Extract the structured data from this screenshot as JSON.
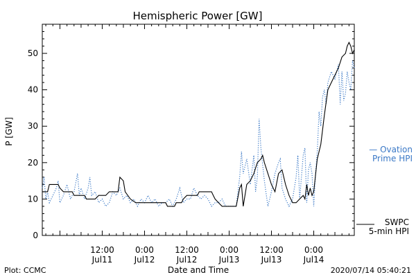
{
  "chart_data": {
    "type": "line",
    "title": "Hemispheric Power [GW]",
    "ylabel": "P [GW]",
    "xlabel": "Date and Time",
    "ylim": [
      0,
      58
    ],
    "yticks": [
      0,
      10,
      20,
      30,
      40,
      50
    ],
    "xlim": [
      "2020-07-10T19:00",
      "2020-07-14T11:30"
    ],
    "xticks": [
      {
        "time": "2020-07-11T12:00",
        "line1": "12:00",
        "line2": "Jul11"
      },
      {
        "time": "2020-07-12T00:00",
        "line1": "0:00",
        "line2": "Jul12"
      },
      {
        "time": "2020-07-12T12:00",
        "line1": "12:00",
        "line2": "Jul12"
      },
      {
        "time": "2020-07-13T00:00",
        "line1": "0:00",
        "line2": "Jul13"
      },
      {
        "time": "2020-07-13T12:00",
        "line1": "12:00",
        "line2": "Jul13"
      },
      {
        "time": "2020-07-14T00:00",
        "line1": "0:00",
        "line2": "Jul14"
      }
    ],
    "series": [
      {
        "name": "SWPC 5-min HPI",
        "color": "#000000",
        "style": "solid",
        "points": [
          [
            "2020-07-10T19:00",
            12
          ],
          [
            "2020-07-10T20:30",
            12
          ],
          [
            "2020-07-10T21:00",
            14
          ],
          [
            "2020-07-10T23:30",
            14
          ],
          [
            "2020-07-11T00:00",
            13
          ],
          [
            "2020-07-11T01:00",
            12
          ],
          [
            "2020-07-11T03:30",
            12
          ],
          [
            "2020-07-11T04:00",
            11
          ],
          [
            "2020-07-11T07:00",
            11
          ],
          [
            "2020-07-11T07:30",
            10
          ],
          [
            "2020-07-11T10:00",
            10
          ],
          [
            "2020-07-11T11:00",
            11
          ],
          [
            "2020-07-11T13:00",
            11
          ],
          [
            "2020-07-11T14:00",
            12
          ],
          [
            "2020-07-11T16:30",
            12
          ],
          [
            "2020-07-11T17:00",
            16
          ],
          [
            "2020-07-11T18:00",
            15
          ],
          [
            "2020-07-11T18:30",
            12
          ],
          [
            "2020-07-11T20:00",
            10
          ],
          [
            "2020-07-11T21:30",
            9
          ],
          [
            "2020-07-12T06:00",
            9
          ],
          [
            "2020-07-12T06:30",
            8
          ],
          [
            "2020-07-12T08:30",
            8
          ],
          [
            "2020-07-12T09:00",
            9
          ],
          [
            "2020-07-12T10:30",
            9
          ],
          [
            "2020-07-12T11:00",
            10
          ],
          [
            "2020-07-12T12:00",
            11
          ],
          [
            "2020-07-12T15:00",
            11
          ],
          [
            "2020-07-12T15:30",
            12
          ],
          [
            "2020-07-12T19:00",
            12
          ],
          [
            "2020-07-12T19:30",
            11
          ],
          [
            "2020-07-12T20:00",
            10
          ],
          [
            "2020-07-12T21:00",
            9
          ],
          [
            "2020-07-12T22:00",
            8
          ],
          [
            "2020-07-13T02:00",
            8
          ],
          [
            "2020-07-13T03:00",
            13
          ],
          [
            "2020-07-13T03:30",
            14
          ],
          [
            "2020-07-13T04:00",
            8
          ],
          [
            "2020-07-13T05:00",
            14
          ],
          [
            "2020-07-13T06:00",
            15
          ],
          [
            "2020-07-13T07:00",
            17
          ],
          [
            "2020-07-13T08:00",
            20
          ],
          [
            "2020-07-13T09:00",
            21
          ],
          [
            "2020-07-13T09:30",
            22
          ],
          [
            "2020-07-13T10:00",
            20
          ],
          [
            "2020-07-13T11:00",
            17
          ],
          [
            "2020-07-13T12:00",
            14
          ],
          [
            "2020-07-13T13:00",
            12
          ],
          [
            "2020-07-13T14:00",
            17
          ],
          [
            "2020-07-13T15:00",
            18
          ],
          [
            "2020-07-13T16:00",
            14
          ],
          [
            "2020-07-13T17:00",
            11
          ],
          [
            "2020-07-13T18:00",
            9
          ],
          [
            "2020-07-13T19:00",
            9
          ],
          [
            "2020-07-13T20:00",
            10
          ],
          [
            "2020-07-13T21:00",
            11
          ],
          [
            "2020-07-13T21:30",
            10
          ],
          [
            "2020-07-13T22:00",
            14
          ],
          [
            "2020-07-13T22:30",
            11
          ],
          [
            "2020-07-13T23:00",
            13
          ],
          [
            "2020-07-13T23:30",
            11
          ],
          [
            "2020-07-14T00:00",
            12
          ],
          [
            "2020-07-14T01:00",
            21
          ],
          [
            "2020-07-14T02:00",
            25
          ],
          [
            "2020-07-14T03:00",
            33
          ],
          [
            "2020-07-14T04:00",
            40
          ],
          [
            "2020-07-14T05:00",
            42
          ],
          [
            "2020-07-14T06:00",
            44
          ],
          [
            "2020-07-14T07:00",
            46
          ],
          [
            "2020-07-14T08:00",
            49
          ],
          [
            "2020-07-14T09:00",
            50
          ],
          [
            "2020-07-14T09:30",
            52
          ],
          [
            "2020-07-14T10:00",
            53
          ],
          [
            "2020-07-14T10:30",
            52
          ],
          [
            "2020-07-14T11:00",
            50
          ],
          [
            "2020-07-14T11:30",
            51
          ]
        ]
      },
      {
        "name": "Ovation Prime HPI",
        "color": "#3a78c6",
        "style": "dotted",
        "points": [
          [
            "2020-07-10T19:00",
            13
          ],
          [
            "2020-07-10T19:30",
            16
          ],
          [
            "2020-07-10T20:00",
            10
          ],
          [
            "2020-07-10T20:30",
            12
          ],
          [
            "2020-07-10T21:00",
            9
          ],
          [
            "2020-07-10T22:00",
            11
          ],
          [
            "2020-07-10T23:00",
            13
          ],
          [
            "2020-07-10T23:30",
            15
          ],
          [
            "2020-07-11T00:00",
            9
          ],
          [
            "2020-07-11T01:00",
            11
          ],
          [
            "2020-07-11T02:00",
            14
          ],
          [
            "2020-07-11T03:00",
            10
          ],
          [
            "2020-07-11T04:00",
            12
          ],
          [
            "2020-07-11T05:00",
            17
          ],
          [
            "2020-07-11T05:30",
            11
          ],
          [
            "2020-07-11T06:00",
            13
          ],
          [
            "2020-07-11T07:00",
            10
          ],
          [
            "2020-07-11T08:00",
            13
          ],
          [
            "2020-07-11T08:30",
            16
          ],
          [
            "2020-07-11T09:00",
            11
          ],
          [
            "2020-07-11T10:00",
            12
          ],
          [
            "2020-07-11T11:00",
            9
          ],
          [
            "2020-07-11T12:00",
            10
          ],
          [
            "2020-07-11T13:00",
            8
          ],
          [
            "2020-07-11T14:00",
            9
          ],
          [
            "2020-07-11T15:00",
            12
          ],
          [
            "2020-07-11T16:00",
            11
          ],
          [
            "2020-07-11T17:00",
            13
          ],
          [
            "2020-07-11T18:00",
            10
          ],
          [
            "2020-07-11T19:00",
            11
          ],
          [
            "2020-07-11T20:00",
            9
          ],
          [
            "2020-07-11T21:00",
            10
          ],
          [
            "2020-07-11T22:00",
            8
          ],
          [
            "2020-07-11T23:00",
            10
          ],
          [
            "2020-07-12T00:00",
            9
          ],
          [
            "2020-07-12T01:00",
            11
          ],
          [
            "2020-07-12T02:00",
            9
          ],
          [
            "2020-07-12T03:00",
            10
          ],
          [
            "2020-07-12T04:00",
            8
          ],
          [
            "2020-07-12T05:00",
            9
          ],
          [
            "2020-07-12T06:00",
            9
          ],
          [
            "2020-07-12T07:00",
            10
          ],
          [
            "2020-07-12T08:00",
            8
          ],
          [
            "2020-07-12T09:00",
            10
          ],
          [
            "2020-07-12T10:00",
            13
          ],
          [
            "2020-07-12T11:00",
            9
          ],
          [
            "2020-07-12T12:00",
            10
          ],
          [
            "2020-07-12T13:00",
            10
          ],
          [
            "2020-07-12T14:00",
            13
          ],
          [
            "2020-07-12T15:00",
            11
          ],
          [
            "2020-07-12T16:00",
            10
          ],
          [
            "2020-07-12T17:00",
            11
          ],
          [
            "2020-07-12T18:00",
            10
          ],
          [
            "2020-07-12T19:00",
            8
          ],
          [
            "2020-07-12T20:00",
            9
          ],
          [
            "2020-07-12T21:00",
            9
          ],
          [
            "2020-07-12T22:00",
            10
          ],
          [
            "2020-07-12T23:00",
            8
          ],
          [
            "2020-07-13T00:00",
            8
          ],
          [
            "2020-07-13T01:00",
            8
          ],
          [
            "2020-07-13T02:00",
            8
          ],
          [
            "2020-07-13T03:00",
            16
          ],
          [
            "2020-07-13T03:30",
            23
          ],
          [
            "2020-07-13T04:00",
            17
          ],
          [
            "2020-07-13T05:00",
            21
          ],
          [
            "2020-07-13T06:00",
            14
          ],
          [
            "2020-07-13T07:00",
            22
          ],
          [
            "2020-07-13T07:30",
            12
          ],
          [
            "2020-07-13T08:00",
            16
          ],
          [
            "2020-07-13T08:30",
            32
          ],
          [
            "2020-07-13T09:00",
            24
          ],
          [
            "2020-07-13T10:00",
            15
          ],
          [
            "2020-07-13T11:00",
            8
          ],
          [
            "2020-07-13T12:00",
            12
          ],
          [
            "2020-07-13T13:00",
            17
          ],
          [
            "2020-07-13T14:00",
            20
          ],
          [
            "2020-07-13T14:30",
            21
          ],
          [
            "2020-07-13T15:00",
            13
          ],
          [
            "2020-07-13T16:00",
            10
          ],
          [
            "2020-07-13T17:00",
            8
          ],
          [
            "2020-07-13T18:00",
            10
          ],
          [
            "2020-07-13T19:00",
            16
          ],
          [
            "2020-07-13T19:30",
            22
          ],
          [
            "2020-07-13T20:00",
            10
          ],
          [
            "2020-07-13T21:00",
            22
          ],
          [
            "2020-07-13T21:30",
            24
          ],
          [
            "2020-07-13T22:00",
            9
          ],
          [
            "2020-07-13T22:30",
            18
          ],
          [
            "2020-07-13T23:00",
            20
          ],
          [
            "2020-07-13T23:30",
            17
          ],
          [
            "2020-07-14T00:00",
            8
          ],
          [
            "2020-07-14T00:30",
            17
          ],
          [
            "2020-07-14T01:00",
            23
          ],
          [
            "2020-07-14T01:30",
            34
          ],
          [
            "2020-07-14T02:00",
            30
          ],
          [
            "2020-07-14T02:30",
            38
          ],
          [
            "2020-07-14T03:00",
            40
          ],
          [
            "2020-07-14T03:30",
            36
          ],
          [
            "2020-07-14T04:00",
            42
          ],
          [
            "2020-07-14T05:00",
            45
          ],
          [
            "2020-07-14T06:00",
            43
          ],
          [
            "2020-07-14T07:00",
            47
          ],
          [
            "2020-07-14T07:30",
            36
          ],
          [
            "2020-07-14T08:00",
            45
          ],
          [
            "2020-07-14T08:30",
            37
          ],
          [
            "2020-07-14T09:00",
            39
          ],
          [
            "2020-07-14T09:30",
            45
          ],
          [
            "2020-07-14T10:00",
            42
          ],
          [
            "2020-07-14T10:30",
            40
          ],
          [
            "2020-07-14T11:00",
            48
          ],
          [
            "2020-07-14T11:30",
            46
          ]
        ]
      }
    ],
    "legend": [
      {
        "line1": "— Ovation",
        "line2": "Prime HPI",
        "color": "#3a78c6"
      },
      {
        "line1": "SWPC",
        "line2": "5-min HPI",
        "color": "#000000"
      }
    ],
    "legend_position": "right",
    "grid": false
  },
  "footer": {
    "left": "Plot: CCMC",
    "right": "2020/07/14 05:40:21"
  }
}
